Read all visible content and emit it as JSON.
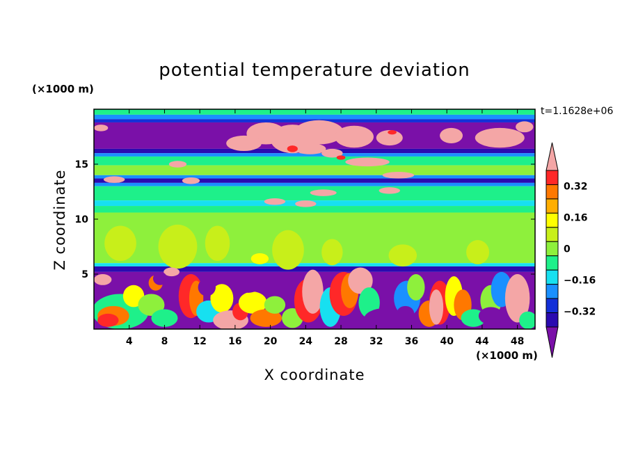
{
  "chart_data": {
    "type": "heatmap",
    "title": "potential temperature deviation",
    "xlabel": "X coordinate",
    "ylabel": "Z coordinate",
    "x_unit_label": "(×1000 m)",
    "y_unit_label": "(×1000 m)",
    "time_label": "t=1.1628e+06",
    "xlim": [
      0,
      50
    ],
    "ylim": [
      0,
      20
    ],
    "x_ticks": [
      4,
      8,
      12,
      16,
      20,
      24,
      28,
      32,
      36,
      40,
      44,
      48
    ],
    "x_tick_labels": [
      "4",
      "8",
      "12",
      "16",
      "20",
      "24",
      "28",
      "32",
      "36",
      "40",
      "44",
      "48"
    ],
    "y_ticks": [
      5,
      10,
      15
    ],
    "y_tick_labels": [
      "5",
      "10",
      "15"
    ],
    "colorbar": {
      "levels": [
        -0.48,
        -0.4,
        -0.32,
        -0.24,
        -0.16,
        -0.08,
        0,
        0.08,
        0.16,
        0.24,
        0.32,
        0.4,
        0.48
      ],
      "tick_values": [
        0.32,
        0.16,
        0,
        -0.16,
        -0.32
      ],
      "tick_labels": [
        "0.32",
        "0.16",
        "0",
        "−0.16",
        "−0.32"
      ],
      "colors": [
        "#7a10a8",
        "#2a0ab0",
        "#1330d8",
        "#1a90ff",
        "#17e0f0",
        "#1ef08a",
        "#8ef03c",
        "#c8ef1a",
        "#ffff00",
        "#ffae00",
        "#ff7800",
        "#ff2828",
        "#f4a6a6"
      ],
      "extend": "both"
    },
    "colors": {
      "purple": "#7a10a8",
      "navy": "#2a0ab0",
      "blue": "#1330d8",
      "azure": "#1a90ff",
      "cyan": "#17e0f0",
      "seagreen": "#1ef08a",
      "green": "#8ef03c",
      "lime": "#c8ef1a",
      "yellow": "#ffff00",
      "amber": "#ffae00",
      "orange": "#ff7800",
      "red": "#ff2828",
      "pink": "#f4a6a6"
    }
  }
}
